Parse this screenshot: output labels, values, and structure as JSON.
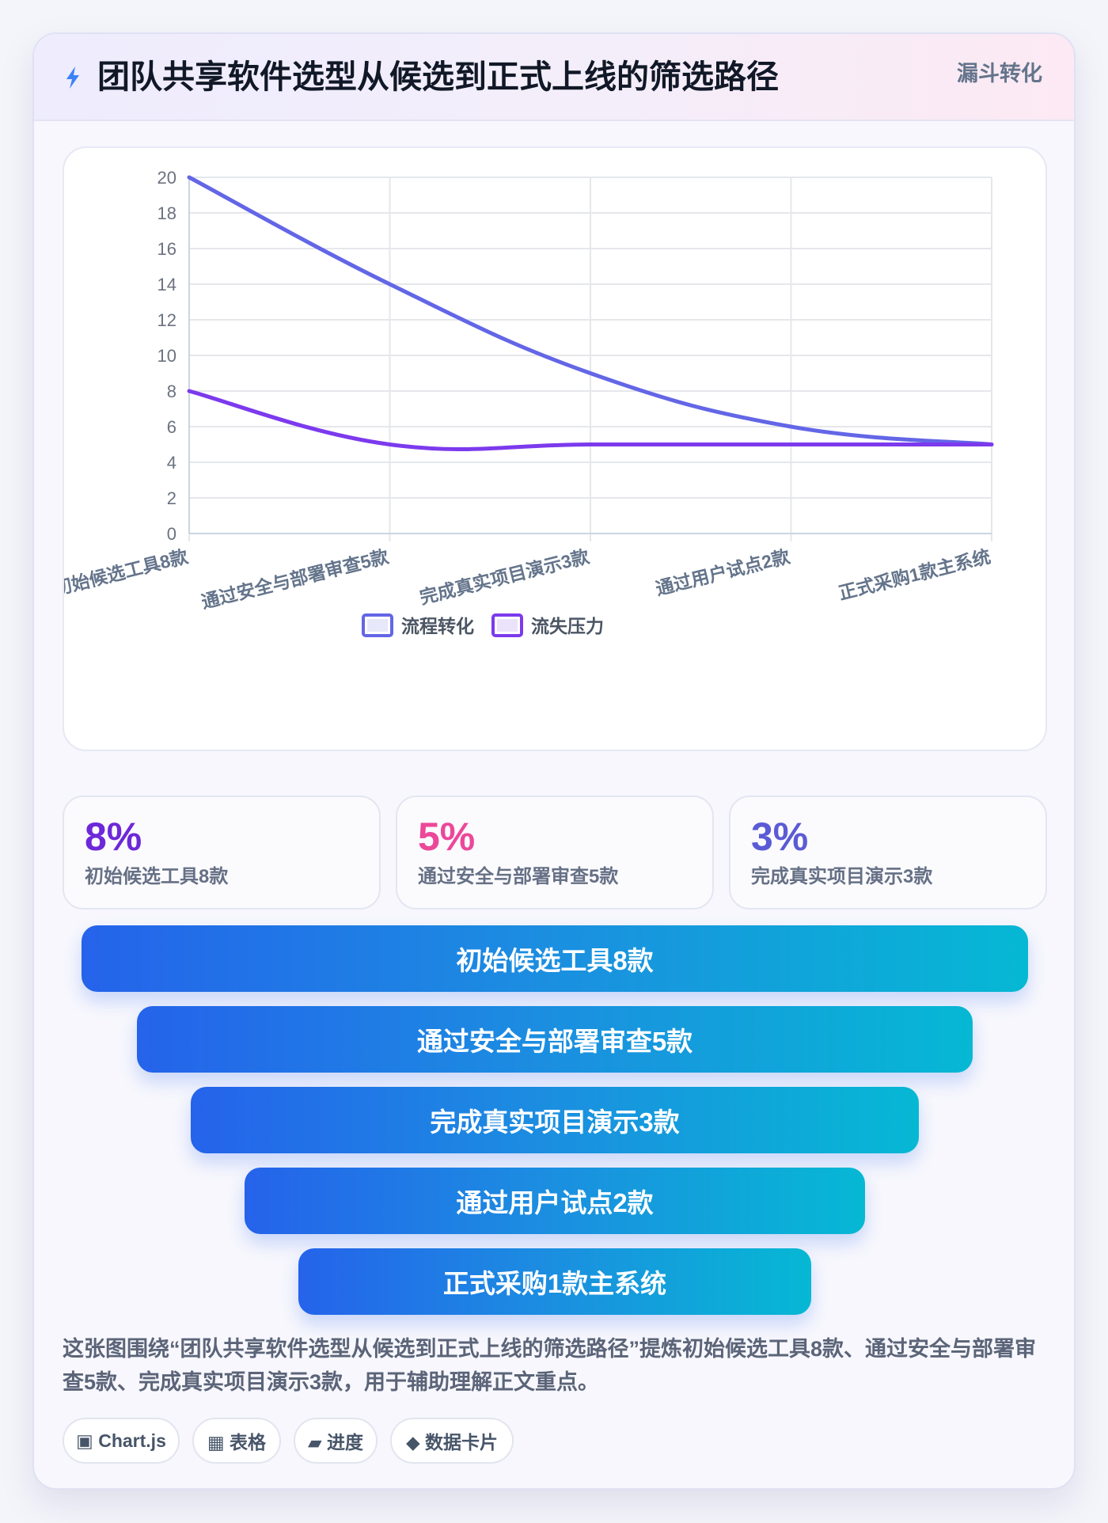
{
  "header": {
    "title": "团队共享软件选型从候选到正式上线的筛选路径",
    "badge": "漏斗转化",
    "icon": "lightning-icon",
    "accent": "#3b82f6"
  },
  "chart_data": {
    "type": "line",
    "categories": [
      "初始候选工具8款",
      "通过安全与部署审查5款",
      "完成真实项目演示3款",
      "通过用户试点2款",
      "正式采购1款主系统"
    ],
    "series": [
      {
        "name": "流程转化",
        "values": [
          20,
          14,
          9,
          6,
          5
        ],
        "color": "#6366e6"
      },
      {
        "name": "流失压力",
        "values": [
          8,
          5,
          5,
          5,
          5
        ],
        "color": "#7c3aed"
      }
    ],
    "ylim": [
      0,
      20
    ],
    "yticks": [
      0,
      2,
      4,
      6,
      8,
      10,
      12,
      14,
      16,
      18,
      20
    ],
    "grid": true,
    "legend": "bottom",
    "title": "",
    "xlabel": "",
    "ylabel": ""
  },
  "stats": [
    {
      "value": "8%",
      "label": "初始候选工具8款",
      "color": "#6d28d9"
    },
    {
      "value": "5%",
      "label": "通过安全与部署审查5款",
      "color": "#ec4899"
    },
    {
      "value": "3%",
      "label": "完成真实项目演示3款",
      "color": "#5b5bd6"
    }
  ],
  "funnel": [
    "初始候选工具8款",
    "通过安全与部署审查5款",
    "完成真实项目演示3款",
    "通过用户试点2款",
    "正式采购1款主系统"
  ],
  "description": "这张图围绕“团队共享软件选型从候选到正式上线的筛选路径”提炼初始候选工具8款、通过安全与部署审查5款、完成真实项目演示3款，用于辅助理解正文重点。",
  "tags": [
    {
      "label": "▣ Chart.js",
      "icon": "chart-icon"
    },
    {
      "label": "▦ 表格",
      "icon": "table-icon"
    },
    {
      "label": "▰ 进度",
      "icon": "progress-icon"
    },
    {
      "label": "◆ 数据卡片",
      "icon": "card-icon"
    }
  ]
}
